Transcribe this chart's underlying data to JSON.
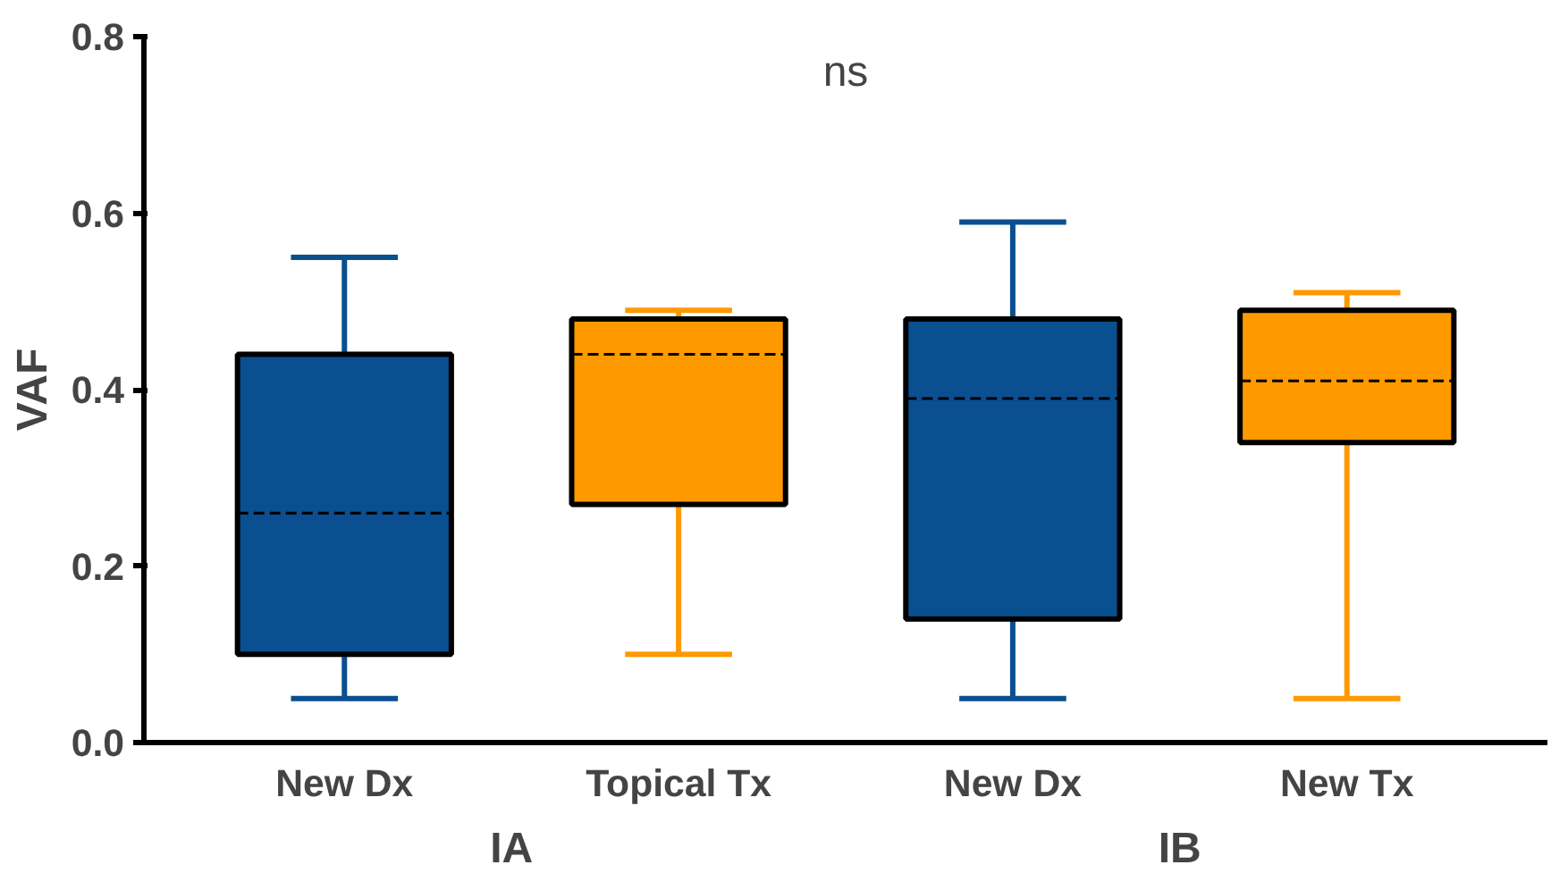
{
  "chart_data": {
    "type": "box",
    "ylabel": "VAF",
    "categories": [
      "New Dx",
      "Topical Tx",
      "New Dx",
      "New Tx"
    ],
    "colors": [
      "#0a4f8f",
      "#ff9900",
      "#0a4f8f",
      "#ff9900"
    ],
    "boxes": [
      {
        "low": 0.05,
        "q1": 0.1,
        "median": 0.26,
        "q3": 0.44,
        "high": 0.55
      },
      {
        "low": 0.1,
        "q1": 0.27,
        "median": 0.44,
        "q3": 0.48,
        "high": 0.49
      },
      {
        "low": 0.05,
        "q1": 0.14,
        "median": 0.39,
        "q3": 0.48,
        "high": 0.59
      },
      {
        "low": 0.05,
        "q1": 0.34,
        "median": 0.41,
        "q3": 0.49,
        "high": 0.51
      }
    ],
    "ylim": [
      0,
      0.8
    ],
    "yticks": [
      {
        "value": 0,
        "label": "0.0"
      },
      {
        "value": 0.2,
        "label": "0.2"
      },
      {
        "value": 0.4,
        "label": "0.4"
      },
      {
        "value": 0.6,
        "label": "0.6"
      },
      {
        "value": 0.8,
        "label": "0.8"
      }
    ],
    "annotations": [
      "ns",
      "IA",
      "IB"
    ],
    "grid": false
  }
}
